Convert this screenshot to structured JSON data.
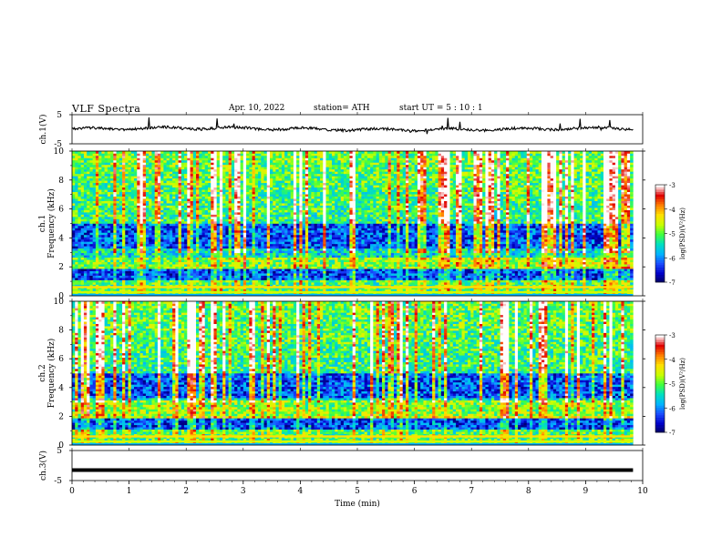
{
  "header": {
    "title": "VLF  Spectra",
    "date": "Apr. 10, 2022",
    "station": "station= ATH",
    "start_ut": "start  UT  =   5  : 10 : 1"
  },
  "chart_data": {
    "type": "heatmap",
    "time_axis": {
      "label": "Time  (min)",
      "range": [
        0,
        10
      ],
      "ticks": [
        "0",
        "1",
        "2",
        "3",
        "4",
        "5",
        "6",
        "7",
        "8",
        "9",
        "10"
      ],
      "data_end": 9.83
    },
    "panels": [
      {
        "id": "ch1-waveform",
        "type": "line",
        "ylabel": "ch.1(V)",
        "ylim": [
          -5,
          5
        ],
        "yticks": [
          "5",
          "-5"
        ],
        "level": 0.1,
        "color": "#000000"
      },
      {
        "id": "ch1-spectrogram",
        "type": "heatmap",
        "ylabel_channel": "ch.1",
        "ylabel": "Frequency  (kHz)",
        "ylim": [
          0,
          10
        ],
        "yticks": [
          "0",
          "2",
          "4",
          "6",
          "8",
          "10"
        ],
        "colorbar": {
          "label": "log(PSD)(V²/Hz)",
          "range": [
            -7,
            -3
          ],
          "ticks": [
            "-3",
            "-4",
            "-5",
            "-6",
            "-7"
          ]
        }
      },
      {
        "id": "ch2-spectrogram",
        "type": "heatmap",
        "ylabel_channel": "ch.2",
        "ylabel": "Frequency  (kHz)",
        "ylim": [
          0,
          10
        ],
        "yticks": [
          "0",
          "2",
          "4",
          "6",
          "8",
          "10"
        ],
        "colorbar": {
          "label": "log(PSD)(V²/Hz)",
          "range": [
            -7,
            -3
          ],
          "ticks": [
            "-3",
            "-4",
            "-5",
            "-6",
            "-7"
          ]
        }
      },
      {
        "id": "ch3-waveform",
        "type": "line",
        "ylabel": "ch.3(V)",
        "ylim": [
          -5,
          5
        ],
        "yticks": [
          "5",
          "-5"
        ],
        "level": -1.5,
        "color": "#000000"
      }
    ],
    "colormap": [
      "#00005a",
      "#0000c8",
      "#1a4cff",
      "#00b4ff",
      "#00e0c0",
      "#40ff40",
      "#c8ff00",
      "#ffe000",
      "#ff8000",
      "#e00000",
      "#ffffff"
    ],
    "grid": false,
    "legend": "colorbar-right"
  }
}
